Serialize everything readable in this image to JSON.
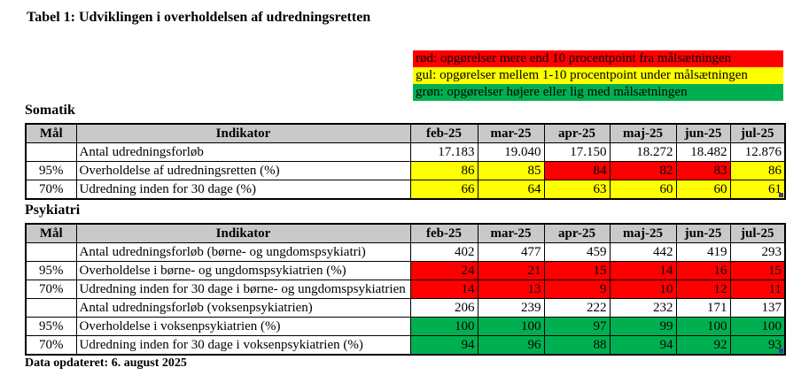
{
  "page": {
    "title": "Tabel 1: Udviklingen i overholdelsen af udredningsretten",
    "footer": "Data opdateret: 6. august 2025"
  },
  "legend": {
    "items": [
      {
        "label": "rød: opgørelser mere end 10 procentpoint fra målsætningen",
        "color_name": "red"
      },
      {
        "label": "gul: opgørelser mellem 1-10 procentpoint under målsætningen",
        "color_name": "yellow"
      },
      {
        "label": "grøn: opgørelser højere eller lig med målsætningen",
        "color_name": "green"
      }
    ]
  },
  "columns": {
    "mal": "Mål",
    "indikator": "Indikator",
    "months": [
      "feb-25",
      "mar-25",
      "apr-25",
      "maj-25",
      "jun-25",
      "jul-25"
    ]
  },
  "tables": [
    {
      "section": "Somatik",
      "rows": [
        {
          "mal": "",
          "indikator": "Antal udredningsforløb",
          "values": [
            "17.183",
            "19.040",
            "17.150",
            "18.272",
            "18.482",
            "12.876"
          ],
          "cell_colors": [
            "white",
            "white",
            "white",
            "white",
            "white",
            "white"
          ]
        },
        {
          "mal": "95%",
          "indikator": "Overholdelse af udredningsretten (%)",
          "values": [
            "86",
            "85",
            "84",
            "82",
            "83",
            "86"
          ],
          "cell_colors": [
            "yellow",
            "yellow",
            "red",
            "red",
            "red",
            "yellow"
          ]
        },
        {
          "mal": "70%",
          "indikator": "Udredning inden for 30 dage (%)",
          "values": [
            "66",
            "64",
            "63",
            "60",
            "60",
            "61"
          ],
          "cell_colors": [
            "yellow",
            "yellow",
            "yellow",
            "yellow",
            "yellow",
            "yellow"
          ]
        }
      ]
    },
    {
      "section": "Psykiatri",
      "rows": [
        {
          "mal": "",
          "indikator": "Antal udredningsforløb (børne- og ungdomspsykiatri)",
          "values": [
            "402",
            "477",
            "459",
            "442",
            "419",
            "293"
          ],
          "cell_colors": [
            "white",
            "white",
            "white",
            "white",
            "white",
            "white"
          ]
        },
        {
          "mal": "95%",
          "indikator": "Overholdelse i børne- og ungdomspsykiatrien (%)",
          "values": [
            "24",
            "21",
            "15",
            "14",
            "16",
            "15"
          ],
          "cell_colors": [
            "red",
            "red",
            "red",
            "red",
            "red",
            "red"
          ]
        },
        {
          "mal": "70%",
          "indikator": "Udredning inden for 30 dage i børne- og ungdomspsykiatrien",
          "values": [
            "14",
            "13",
            "9",
            "10",
            "12",
            "11"
          ],
          "cell_colors": [
            "red",
            "red",
            "red",
            "red",
            "red",
            "red"
          ]
        },
        {
          "mal": "",
          "indikator": "Antal udredningsforløb (voksenpsykiatrien)",
          "values": [
            "206",
            "239",
            "222",
            "232",
            "171",
            "137"
          ],
          "cell_colors": [
            "white",
            "white",
            "white",
            "white",
            "white",
            "white"
          ]
        },
        {
          "mal": "95%",
          "indikator": "Overholdelse i voksenpsykiatrien (%)",
          "values": [
            "100",
            "100",
            "97",
            "99",
            "100",
            "100"
          ],
          "cell_colors": [
            "green",
            "green",
            "green",
            "green",
            "green",
            "green"
          ]
        },
        {
          "mal": "70%",
          "indikator": "Udredning inden for 30 dage i voksenpsykiatrien (%)",
          "values": [
            "94",
            "96",
            "88",
            "94",
            "92",
            "93"
          ],
          "cell_colors": [
            "green",
            "green",
            "green",
            "green",
            "green",
            "green"
          ]
        }
      ]
    }
  ],
  "colors": {
    "red": "#FF0000",
    "yellow": "#FFFF00",
    "green": "#00B050",
    "white": "#FFFFFF",
    "header_bg": "#C9C9C9",
    "artifact_blue": "#3A3A9E"
  }
}
